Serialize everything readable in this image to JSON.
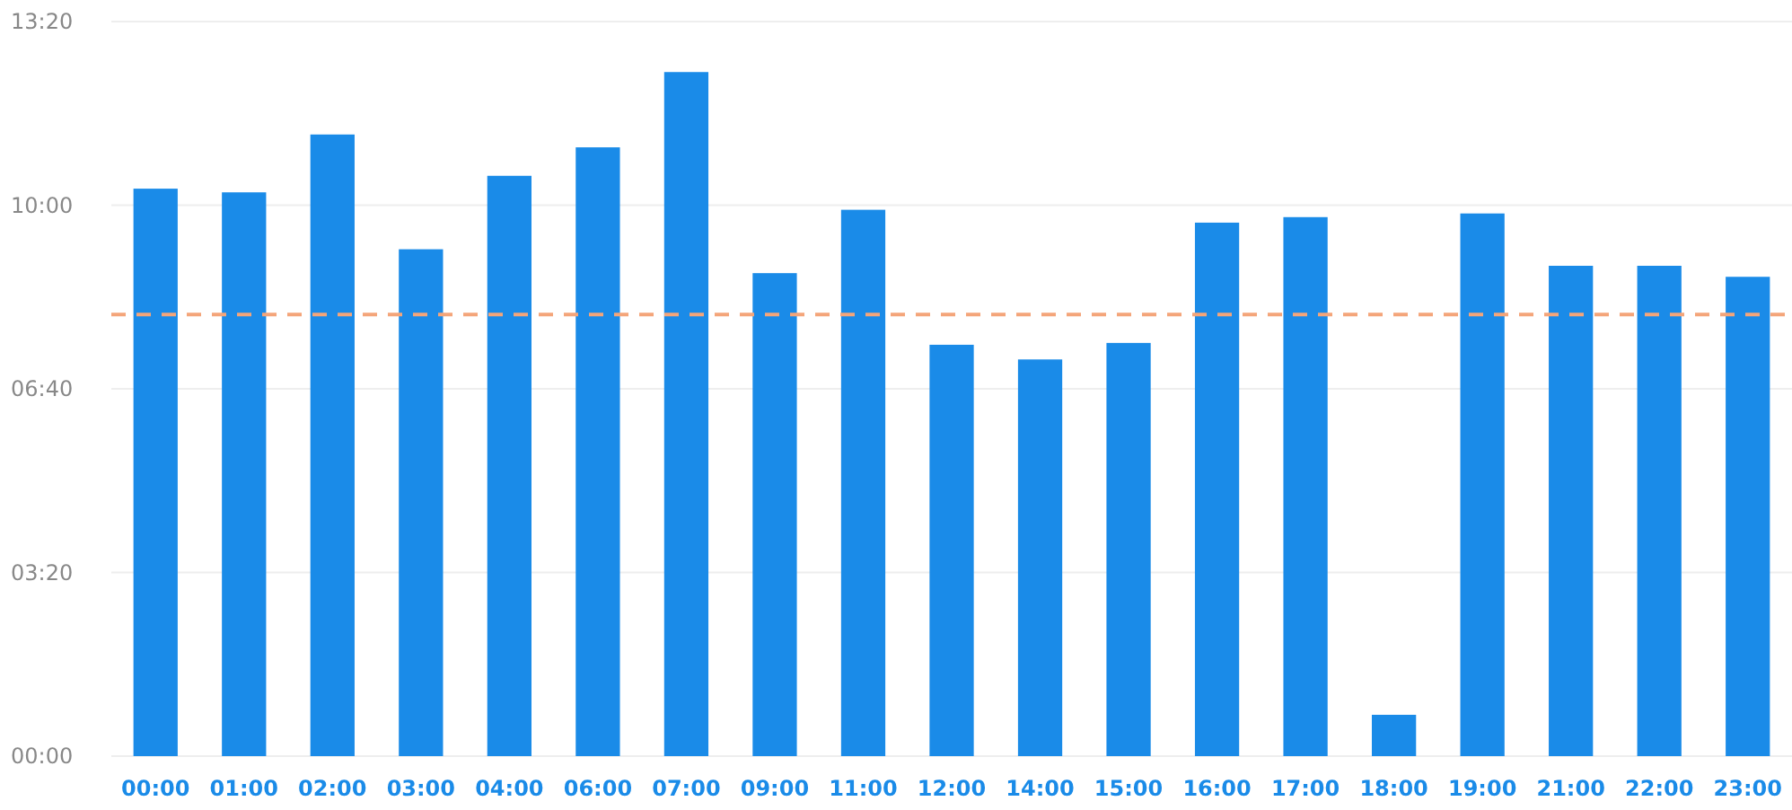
{
  "chart_data": {
    "type": "bar",
    "categories": [
      "00:00",
      "01:00",
      "02:00",
      "03:00",
      "04:00",
      "06:00",
      "07:00",
      "09:00",
      "11:00",
      "12:00",
      "14:00",
      "15:00",
      "16:00",
      "17:00",
      "18:00",
      "19:00",
      "21:00",
      "22:00",
      "23:00"
    ],
    "values": [
      618,
      614,
      677,
      552,
      632,
      663,
      745,
      526,
      595,
      448,
      432,
      450,
      581,
      587,
      45,
      591,
      534,
      534,
      522
    ],
    "color": "#1a8be8",
    "ylim": [
      0,
      800
    ],
    "yticks": [
      {
        "value": 0,
        "label": "00:00"
      },
      {
        "value": 200,
        "label": "03:20"
      },
      {
        "value": 400,
        "label": "06:40"
      },
      {
        "value": 600,
        "label": "10:00"
      },
      {
        "value": 800,
        "label": "13:20"
      }
    ],
    "grid": "y",
    "ref_lines": [
      {
        "axis": "y",
        "value": 481,
        "color": "#f4a57a",
        "line_style": "dashed"
      }
    ]
  }
}
